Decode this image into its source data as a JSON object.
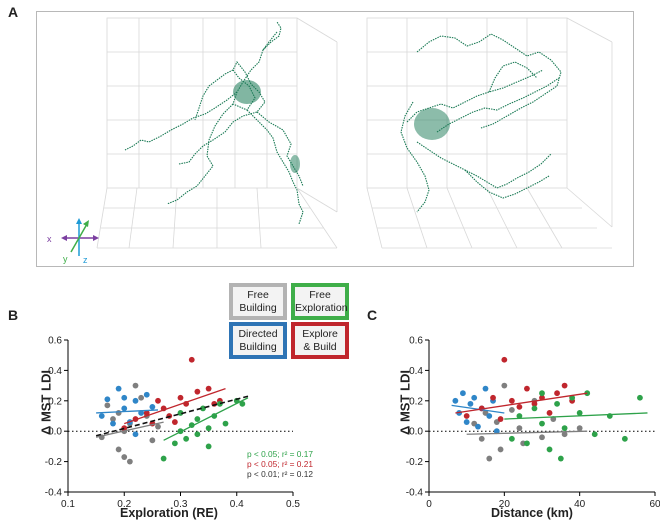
{
  "panels": {
    "a": "A",
    "b": "B",
    "c": "C"
  },
  "axes_indicator": {
    "x": "x",
    "y": "y",
    "z": "z"
  },
  "legend": [
    {
      "line1": "Free",
      "line2": "Building",
      "color": "#b3b3b3"
    },
    {
      "line1": "Free",
      "line2": "Exploration",
      "color": "#3fae49"
    },
    {
      "line1": "Directed",
      "line2": "Building",
      "color": "#2e74b5"
    },
    {
      "line1": "Explore",
      "line2": "& Build",
      "color": "#c0262d"
    }
  ],
  "colors": {
    "free_building": "#7f7f7f",
    "free_exploration": "#2ea24a",
    "directed_building": "#2f86c8",
    "explore_build": "#c0262d",
    "trajectory": "#1a7a55"
  },
  "stats": [
    {
      "text": "p < 0.05; r² = 0.17",
      "color": "#2ea24a"
    },
    {
      "text": "p < 0.05; r² = 0.21",
      "color": "#c0262d"
    },
    {
      "text": "p < 0.01; r² = 0.12",
      "color": "#333333"
    }
  ],
  "chart_data": [
    {
      "type": "scatter",
      "title": "",
      "xlabel": "Exploration (RE)",
      "ylabel": "Δ MST LDI",
      "xlim": [
        0.1,
        0.5
      ],
      "ylim": [
        -0.4,
        0.6
      ],
      "xticks": [
        "0.1",
        "0.2",
        "0.3",
        "0.4",
        "0.5"
      ],
      "yticks": [
        "-0.4",
        "-0.2",
        "0.0",
        "0.2",
        "0.4",
        "0.6"
      ],
      "series": [
        {
          "name": "Free Building",
          "color": "#7f7f7f",
          "points": [
            [
              0.16,
              -0.04
            ],
            [
              0.18,
              0.08
            ],
            [
              0.19,
              -0.12
            ],
            [
              0.2,
              -0.17
            ],
            [
              0.21,
              0.05
            ],
            [
              0.22,
              0.3
            ],
            [
              0.23,
              0.22
            ],
            [
              0.24,
              0.1
            ],
            [
              0.17,
              0.17
            ],
            [
              0.2,
              0.0
            ],
            [
              0.25,
              -0.06
            ],
            [
              0.21,
              -0.2
            ],
            [
              0.19,
              0.12
            ],
            [
              0.26,
              0.03
            ]
          ],
          "fit": [
            [
              0.15,
              -0.04
            ],
            [
              0.27,
              0.06
            ]
          ]
        },
        {
          "name": "Directed Building",
          "color": "#2f86c8",
          "points": [
            [
              0.17,
              0.21
            ],
            [
              0.19,
              0.28
            ],
            [
              0.2,
              0.15
            ],
            [
              0.21,
              0.06
            ],
            [
              0.22,
              0.2
            ],
            [
              0.23,
              0.12
            ],
            [
              0.24,
              0.24
            ],
            [
              0.18,
              0.05
            ],
            [
              0.25,
              0.16
            ],
            [
              0.2,
              0.22
            ],
            [
              0.16,
              0.1
            ],
            [
              0.22,
              -0.02
            ]
          ],
          "fit": [
            [
              0.15,
              0.12
            ],
            [
              0.26,
              0.14
            ]
          ]
        },
        {
          "name": "Explore & Build",
          "color": "#c0262d",
          "points": [
            [
              0.2,
              0.02
            ],
            [
              0.22,
              0.08
            ],
            [
              0.24,
              0.12
            ],
            [
              0.26,
              0.2
            ],
            [
              0.27,
              0.15
            ],
            [
              0.28,
              0.1
            ],
            [
              0.3,
              0.22
            ],
            [
              0.31,
              0.18
            ],
            [
              0.32,
              0.47
            ],
            [
              0.33,
              0.26
            ],
            [
              0.35,
              0.28
            ],
            [
              0.36,
              0.18
            ],
            [
              0.29,
              0.06
            ],
            [
              0.25,
              0.05
            ],
            [
              0.37,
              0.2
            ]
          ],
          "fit": [
            [
              0.2,
              0.05
            ],
            [
              0.38,
              0.28
            ]
          ]
        },
        {
          "name": "Free Exploration",
          "color": "#2ea24a",
          "points": [
            [
              0.27,
              -0.18
            ],
            [
              0.29,
              -0.08
            ],
            [
              0.3,
              0.0
            ],
            [
              0.31,
              -0.05
            ],
            [
              0.32,
              0.04
            ],
            [
              0.33,
              0.08
            ],
            [
              0.34,
              0.15
            ],
            [
              0.35,
              0.02
            ],
            [
              0.36,
              0.1
            ],
            [
              0.37,
              0.18
            ],
            [
              0.38,
              0.05
            ],
            [
              0.4,
              0.2
            ],
            [
              0.41,
              0.18
            ],
            [
              0.33,
              -0.02
            ],
            [
              0.3,
              0.12
            ],
            [
              0.35,
              -0.1
            ]
          ],
          "fit": [
            [
              0.27,
              -0.06
            ],
            [
              0.42,
              0.22
            ]
          ]
        },
        {
          "name": "All (dashed)",
          "color": "#111111",
          "style": "dashed",
          "fit": [
            [
              0.15,
              -0.03
            ],
            [
              0.42,
              0.23
            ]
          ]
        }
      ]
    },
    {
      "type": "scatter",
      "title": "",
      "xlabel": "Distance (km)",
      "ylabel": "Δ MST LDI",
      "xlim": [
        0,
        60
      ],
      "ylim": [
        -0.4,
        0.6
      ],
      "xticks": [
        "0",
        "20",
        "40",
        "60"
      ],
      "yticks": [
        "-0.4",
        "-0.2",
        "0.0",
        "0.2",
        "0.4",
        "0.6"
      ],
      "series": [
        {
          "name": "Free Building",
          "color": "#7f7f7f",
          "points": [
            [
              12,
              0.05
            ],
            [
              14,
              -0.05
            ],
            [
              16,
              -0.18
            ],
            [
              18,
              0.06
            ],
            [
              19,
              -0.12
            ],
            [
              20,
              0.3
            ],
            [
              22,
              0.14
            ],
            [
              24,
              0.02
            ],
            [
              25,
              -0.08
            ],
            [
              28,
              0.2
            ],
            [
              30,
              -0.04
            ],
            [
              33,
              0.08
            ],
            [
              36,
              -0.02
            ],
            [
              40,
              0.02
            ],
            [
              15,
              0.12
            ]
          ],
          "fit": [
            [
              10,
              -0.02
            ],
            [
              42,
              0.0
            ]
          ]
        },
        {
          "name": "Directed Building",
          "color": "#2f86c8",
          "points": [
            [
              7,
              0.2
            ],
            [
              8,
              0.12
            ],
            [
              9,
              0.25
            ],
            [
              10,
              0.06
            ],
            [
              11,
              0.18
            ],
            [
              12,
              0.22
            ],
            [
              13,
              0.03
            ],
            [
              14,
              0.15
            ],
            [
              15,
              0.28
            ],
            [
              16,
              0.1
            ],
            [
              17,
              0.2
            ],
            [
              18,
              0.0
            ]
          ],
          "fit": [
            [
              6,
              0.17
            ],
            [
              20,
              0.12
            ]
          ]
        },
        {
          "name": "Explore & Build",
          "color": "#c0262d",
          "points": [
            [
              10,
              0.1
            ],
            [
              14,
              0.15
            ],
            [
              17,
              0.22
            ],
            [
              19,
              0.08
            ],
            [
              20,
              0.47
            ],
            [
              22,
              0.2
            ],
            [
              24,
              0.16
            ],
            [
              26,
              0.28
            ],
            [
              28,
              0.18
            ],
            [
              30,
              0.22
            ],
            [
              32,
              0.12
            ],
            [
              34,
              0.25
            ],
            [
              36,
              0.3
            ],
            [
              38,
              0.2
            ]
          ],
          "fit": [
            [
              7,
              0.12
            ],
            [
              42,
              0.25
            ]
          ]
        },
        {
          "name": "Free Exploration",
          "color": "#2ea24a",
          "points": [
            [
              22,
              -0.05
            ],
            [
              24,
              0.1
            ],
            [
              26,
              -0.08
            ],
            [
              28,
              0.15
            ],
            [
              30,
              0.05
            ],
            [
              32,
              -0.12
            ],
            [
              34,
              0.18
            ],
            [
              36,
              0.02
            ],
            [
              38,
              0.22
            ],
            [
              40,
              0.12
            ],
            [
              42,
              0.25
            ],
            [
              44,
              -0.02
            ],
            [
              48,
              0.1
            ],
            [
              52,
              -0.05
            ],
            [
              56,
              0.22
            ],
            [
              30,
              0.25
            ],
            [
              35,
              -0.18
            ]
          ],
          "fit": [
            [
              20,
              0.08
            ],
            [
              58,
              0.12
            ]
          ]
        }
      ]
    }
  ]
}
